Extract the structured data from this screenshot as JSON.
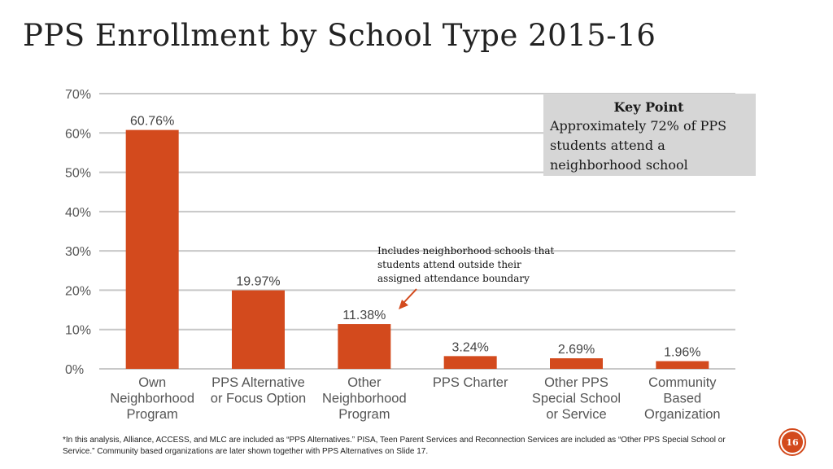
{
  "slide": {
    "title": "PPS Enrollment by School Type 2015-16",
    "page_number": "16",
    "footnote": "*In this analysis, Alliance, ACCESS,  and MLC are included as “PPS Alternatives.” PISA, Teen Parent Services and Reconnection Services are included as “Other PPS Special School or Service.”  Community based organizations are later shown together with PPS Alternatives on Slide 17."
  },
  "key_point": {
    "title": "Key Point",
    "lines": [
      "Approximately 72% of PPS",
      "students attend a",
      "neighborhood school"
    ]
  },
  "annotation": {
    "lines": [
      "Includes neighborhood schools that",
      "students attend outside their",
      "assigned attendance boundary"
    ]
  },
  "colors": {
    "bar": "#d34a1d",
    "grid": "#c8c8c8",
    "axis_text": "#555555",
    "accent": "#d34a1d"
  },
  "chart_data": {
    "type": "bar",
    "categories": [
      [
        "Own",
        "Neighborhood",
        "Program"
      ],
      [
        "PPS Alternative",
        "or Focus Option"
      ],
      [
        "Other",
        "Neighborhood",
        "Program"
      ],
      [
        "PPS Charter"
      ],
      [
        "Other PPS",
        "Special School",
        "or Service"
      ],
      [
        "Community",
        "Based",
        "Organization"
      ]
    ],
    "values": [
      60.76,
      19.97,
      11.38,
      3.24,
      2.69,
      1.96
    ],
    "data_labels": [
      "60.76%",
      "19.97%",
      "11.38%",
      "3.24%",
      "2.69%",
      "1.96%"
    ],
    "y_ticks": [
      "0%",
      "10%",
      "20%",
      "30%",
      "40%",
      "50%",
      "60%",
      "70%"
    ],
    "ylim": [
      0,
      70
    ],
    "grid": true
  }
}
